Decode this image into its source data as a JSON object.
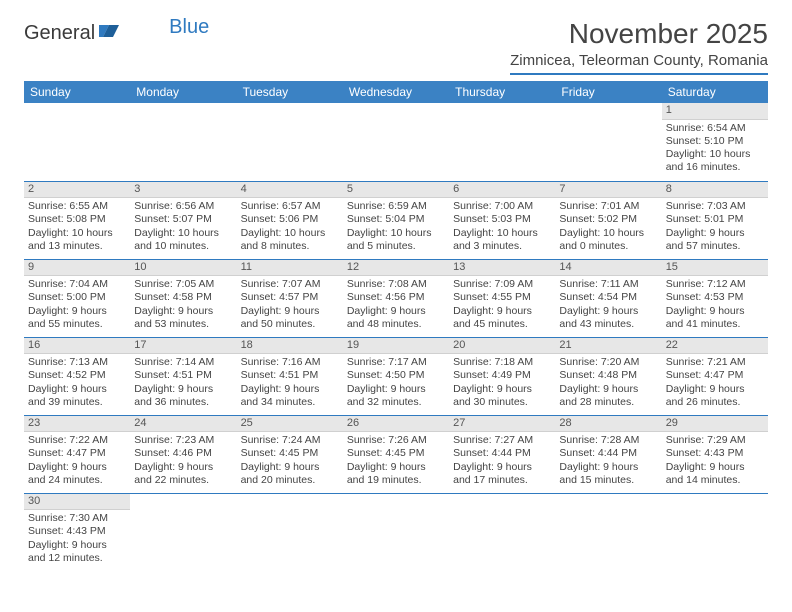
{
  "logo": {
    "text1": "General",
    "text2": "Blue"
  },
  "title": "November 2025",
  "location": "Zimnicea, Teleorman County, Romania",
  "colors": {
    "header_bg": "#3b82c4",
    "accent": "#2f7ac0",
    "daynum_bg": "#e7e7e7",
    "text": "#444444"
  },
  "daysOfWeek": [
    "Sunday",
    "Monday",
    "Tuesday",
    "Wednesday",
    "Thursday",
    "Friday",
    "Saturday"
  ],
  "weeks": [
    [
      null,
      null,
      null,
      null,
      null,
      null,
      {
        "n": "1",
        "sr": "Sunrise: 6:54 AM",
        "ss": "Sunset: 5:10 PM",
        "dl": "Daylight: 10 hours and 16 minutes."
      }
    ],
    [
      {
        "n": "2",
        "sr": "Sunrise: 6:55 AM",
        "ss": "Sunset: 5:08 PM",
        "dl": "Daylight: 10 hours and 13 minutes."
      },
      {
        "n": "3",
        "sr": "Sunrise: 6:56 AM",
        "ss": "Sunset: 5:07 PM",
        "dl": "Daylight: 10 hours and 10 minutes."
      },
      {
        "n": "4",
        "sr": "Sunrise: 6:57 AM",
        "ss": "Sunset: 5:06 PM",
        "dl": "Daylight: 10 hours and 8 minutes."
      },
      {
        "n": "5",
        "sr": "Sunrise: 6:59 AM",
        "ss": "Sunset: 5:04 PM",
        "dl": "Daylight: 10 hours and 5 minutes."
      },
      {
        "n": "6",
        "sr": "Sunrise: 7:00 AM",
        "ss": "Sunset: 5:03 PM",
        "dl": "Daylight: 10 hours and 3 minutes."
      },
      {
        "n": "7",
        "sr": "Sunrise: 7:01 AM",
        "ss": "Sunset: 5:02 PM",
        "dl": "Daylight: 10 hours and 0 minutes."
      },
      {
        "n": "8",
        "sr": "Sunrise: 7:03 AM",
        "ss": "Sunset: 5:01 PM",
        "dl": "Daylight: 9 hours and 57 minutes."
      }
    ],
    [
      {
        "n": "9",
        "sr": "Sunrise: 7:04 AM",
        "ss": "Sunset: 5:00 PM",
        "dl": "Daylight: 9 hours and 55 minutes."
      },
      {
        "n": "10",
        "sr": "Sunrise: 7:05 AM",
        "ss": "Sunset: 4:58 PM",
        "dl": "Daylight: 9 hours and 53 minutes."
      },
      {
        "n": "11",
        "sr": "Sunrise: 7:07 AM",
        "ss": "Sunset: 4:57 PM",
        "dl": "Daylight: 9 hours and 50 minutes."
      },
      {
        "n": "12",
        "sr": "Sunrise: 7:08 AM",
        "ss": "Sunset: 4:56 PM",
        "dl": "Daylight: 9 hours and 48 minutes."
      },
      {
        "n": "13",
        "sr": "Sunrise: 7:09 AM",
        "ss": "Sunset: 4:55 PM",
        "dl": "Daylight: 9 hours and 45 minutes."
      },
      {
        "n": "14",
        "sr": "Sunrise: 7:11 AM",
        "ss": "Sunset: 4:54 PM",
        "dl": "Daylight: 9 hours and 43 minutes."
      },
      {
        "n": "15",
        "sr": "Sunrise: 7:12 AM",
        "ss": "Sunset: 4:53 PM",
        "dl": "Daylight: 9 hours and 41 minutes."
      }
    ],
    [
      {
        "n": "16",
        "sr": "Sunrise: 7:13 AM",
        "ss": "Sunset: 4:52 PM",
        "dl": "Daylight: 9 hours and 39 minutes."
      },
      {
        "n": "17",
        "sr": "Sunrise: 7:14 AM",
        "ss": "Sunset: 4:51 PM",
        "dl": "Daylight: 9 hours and 36 minutes."
      },
      {
        "n": "18",
        "sr": "Sunrise: 7:16 AM",
        "ss": "Sunset: 4:51 PM",
        "dl": "Daylight: 9 hours and 34 minutes."
      },
      {
        "n": "19",
        "sr": "Sunrise: 7:17 AM",
        "ss": "Sunset: 4:50 PM",
        "dl": "Daylight: 9 hours and 32 minutes."
      },
      {
        "n": "20",
        "sr": "Sunrise: 7:18 AM",
        "ss": "Sunset: 4:49 PM",
        "dl": "Daylight: 9 hours and 30 minutes."
      },
      {
        "n": "21",
        "sr": "Sunrise: 7:20 AM",
        "ss": "Sunset: 4:48 PM",
        "dl": "Daylight: 9 hours and 28 minutes."
      },
      {
        "n": "22",
        "sr": "Sunrise: 7:21 AM",
        "ss": "Sunset: 4:47 PM",
        "dl": "Daylight: 9 hours and 26 minutes."
      }
    ],
    [
      {
        "n": "23",
        "sr": "Sunrise: 7:22 AM",
        "ss": "Sunset: 4:47 PM",
        "dl": "Daylight: 9 hours and 24 minutes."
      },
      {
        "n": "24",
        "sr": "Sunrise: 7:23 AM",
        "ss": "Sunset: 4:46 PM",
        "dl": "Daylight: 9 hours and 22 minutes."
      },
      {
        "n": "25",
        "sr": "Sunrise: 7:24 AM",
        "ss": "Sunset: 4:45 PM",
        "dl": "Daylight: 9 hours and 20 minutes."
      },
      {
        "n": "26",
        "sr": "Sunrise: 7:26 AM",
        "ss": "Sunset: 4:45 PM",
        "dl": "Daylight: 9 hours and 19 minutes."
      },
      {
        "n": "27",
        "sr": "Sunrise: 7:27 AM",
        "ss": "Sunset: 4:44 PM",
        "dl": "Daylight: 9 hours and 17 minutes."
      },
      {
        "n": "28",
        "sr": "Sunrise: 7:28 AM",
        "ss": "Sunset: 4:44 PM",
        "dl": "Daylight: 9 hours and 15 minutes."
      },
      {
        "n": "29",
        "sr": "Sunrise: 7:29 AM",
        "ss": "Sunset: 4:43 PM",
        "dl": "Daylight: 9 hours and 14 minutes."
      }
    ],
    [
      {
        "n": "30",
        "sr": "Sunrise: 7:30 AM",
        "ss": "Sunset: 4:43 PM",
        "dl": "Daylight: 9 hours and 12 minutes."
      },
      null,
      null,
      null,
      null,
      null,
      null
    ]
  ]
}
